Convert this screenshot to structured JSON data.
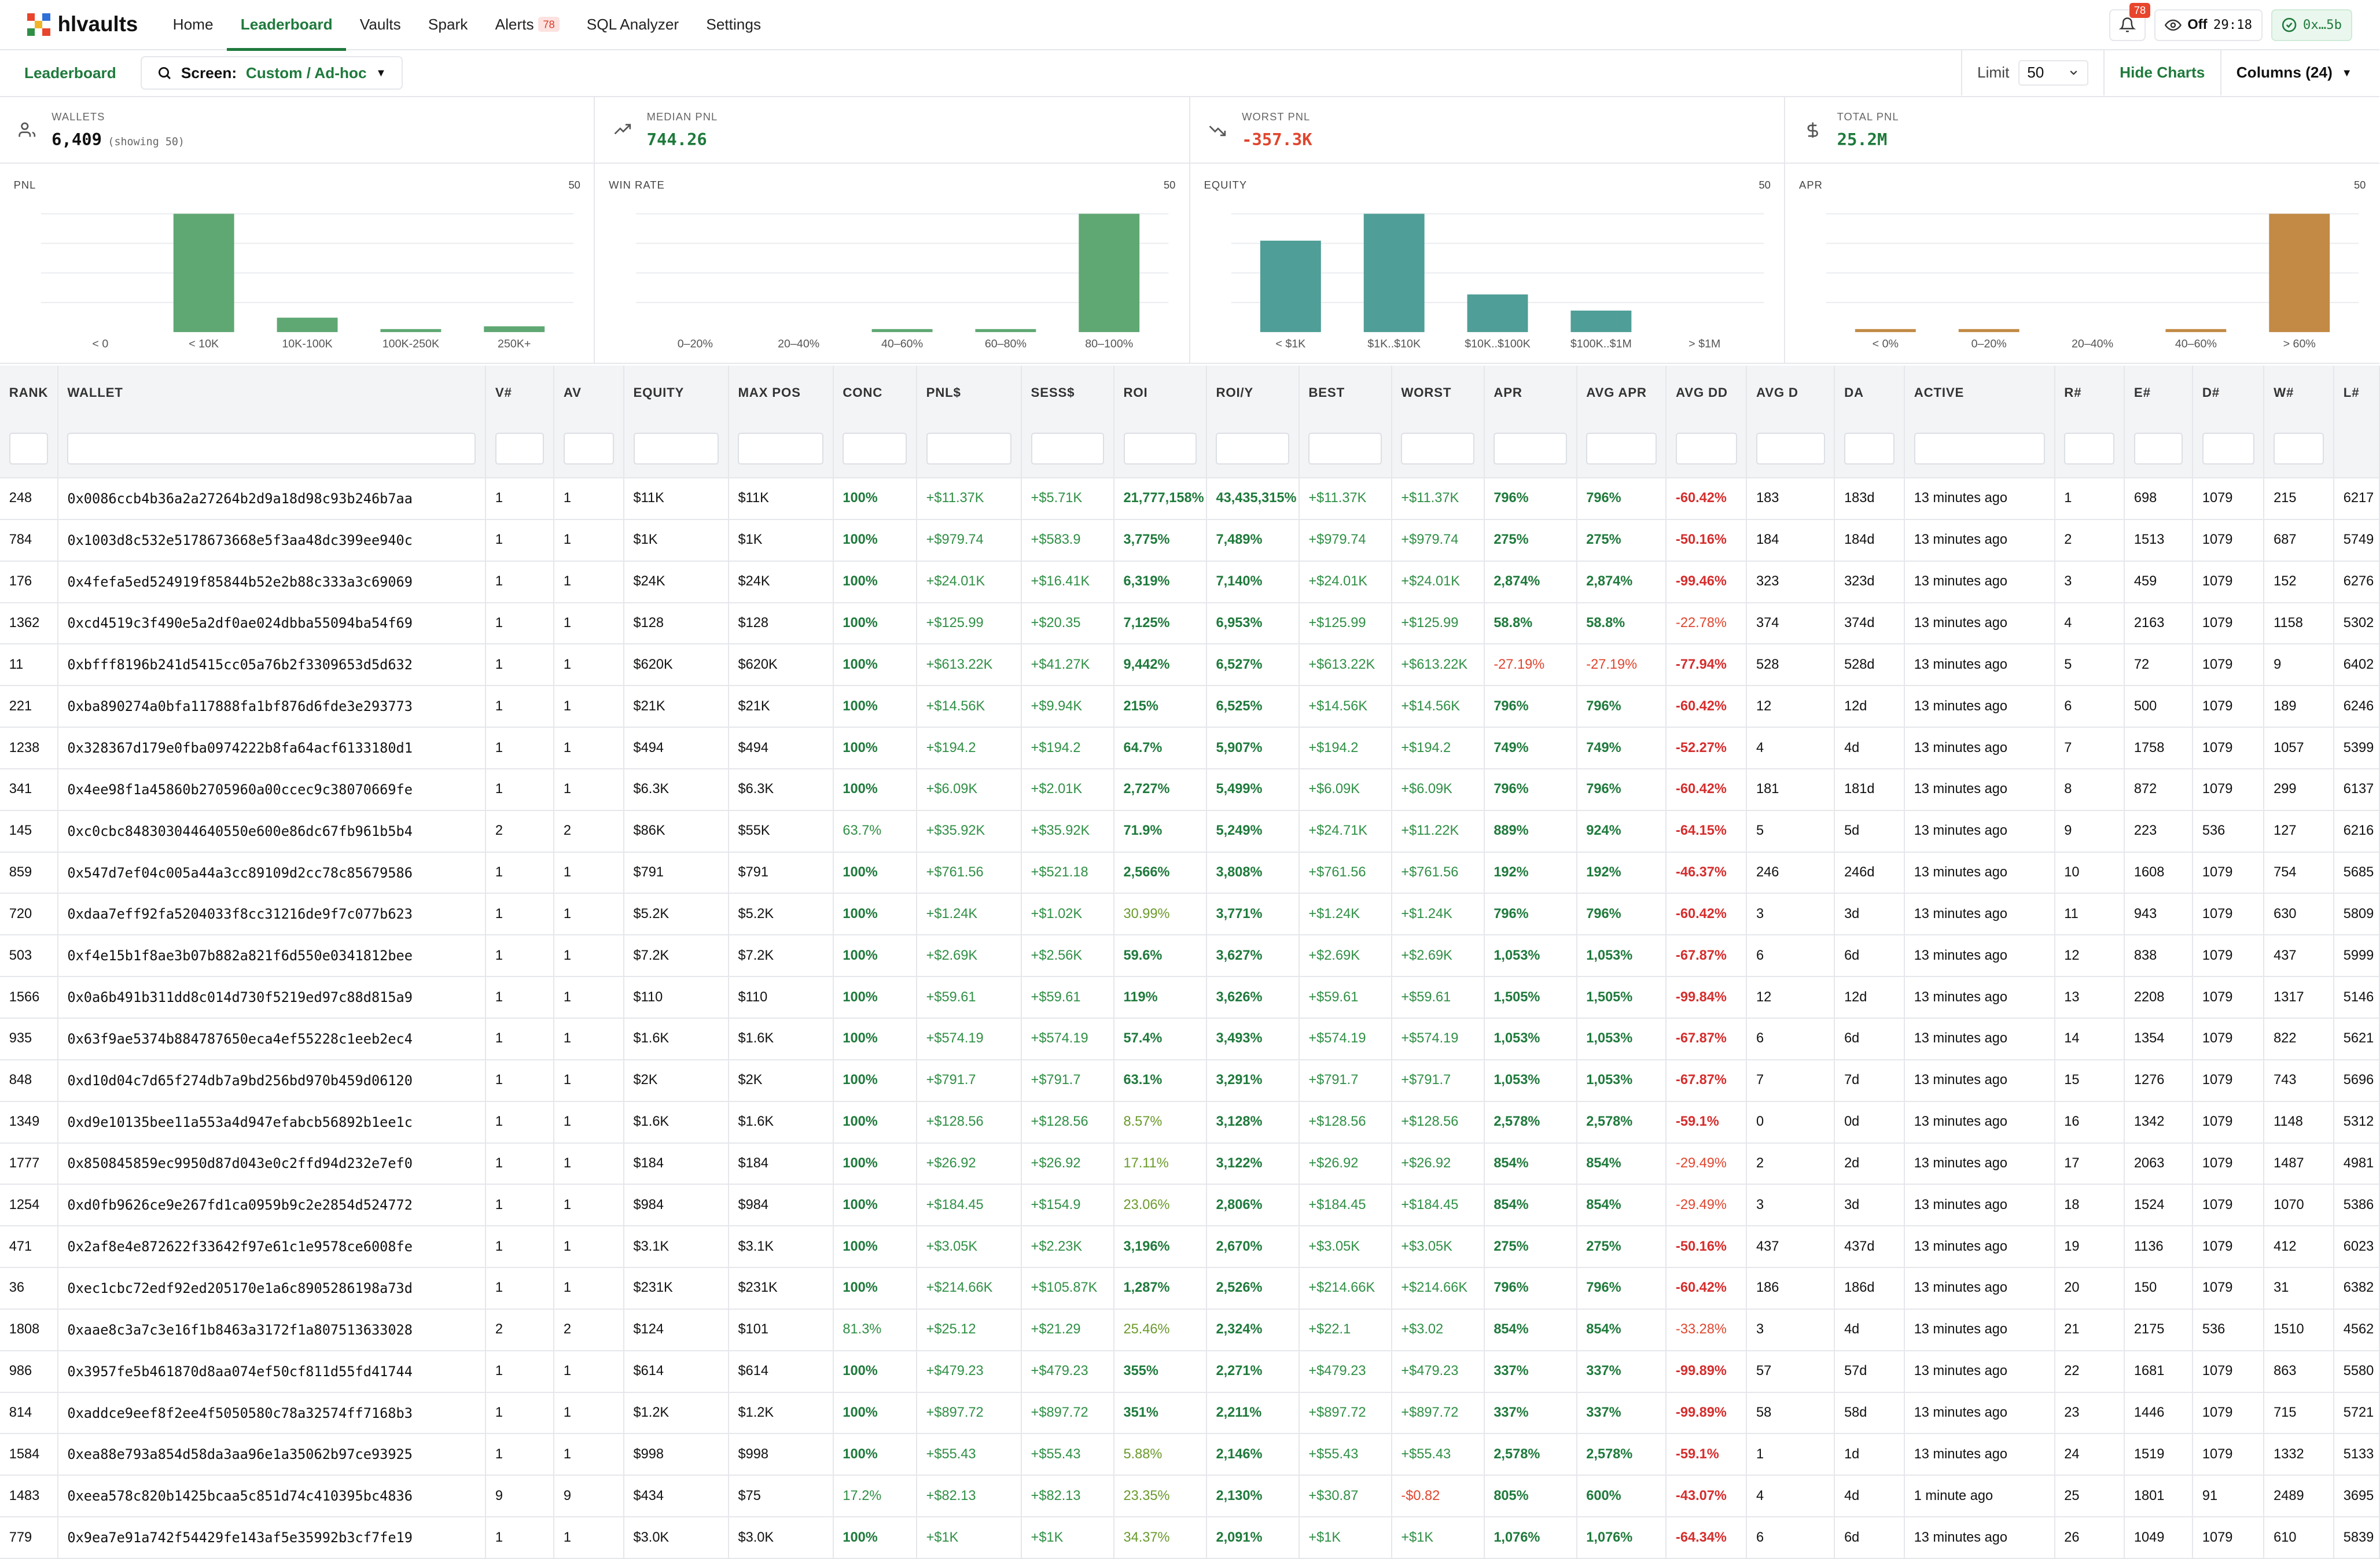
{
  "app": {
    "logo_text": "hlvaults",
    "nav": [
      {
        "label": "Home",
        "active": false
      },
      {
        "label": "Leaderboard",
        "active": true
      },
      {
        "label": "Vaults",
        "active": false
      },
      {
        "label": "Spark",
        "active": false
      },
      {
        "label": "Alerts",
        "active": false,
        "badge": "78"
      },
      {
        "label": "SQL Analyzer",
        "active": false
      },
      {
        "label": "Settings",
        "active": false
      }
    ],
    "notifications_count": "78",
    "watch_label": "Off",
    "watch_timer": "29:18",
    "wallet_short": "0x…5b"
  },
  "subbar": {
    "page_label": "Leaderboard",
    "screen_label": "Screen:",
    "screen_value": "Custom / Ad-hoc",
    "limit_label": "Limit",
    "limit_value": "50",
    "hide_charts": "Hide Charts",
    "columns_label": "Columns (24)"
  },
  "stats": [
    {
      "label": "WALLETS",
      "value": "6,409",
      "note": "(showing 50)",
      "icon": "users-icon",
      "color": "#111111"
    },
    {
      "label": "MEDIAN PNL",
      "value": "744.26",
      "note": "",
      "icon": "trend-up-icon",
      "color": "#1f7a3c"
    },
    {
      "label": "WORST PNL",
      "value": "-357.3K",
      "note": "",
      "icon": "trend-down-icon",
      "color": "#e0452e"
    },
    {
      "label": "TOTAL PNL",
      "value": "25.2M",
      "note": "",
      "icon": "dollar-icon",
      "color": "#1f7a3c"
    }
  ],
  "chart_data": [
    {
      "type": "bar",
      "title": "PNL",
      "count": "50",
      "categories": [
        "< 0",
        "< 10K",
        "10K-100K",
        "100K-250K",
        "250K+"
      ],
      "values": [
        0,
        41,
        5,
        1,
        2
      ],
      "color": "#5fa873"
    },
    {
      "type": "bar",
      "title": "WIN RATE",
      "count": "50",
      "categories": [
        "0–20%",
        "20–40%",
        "40–60%",
        "60–80%",
        "80–100%"
      ],
      "values": [
        0,
        0,
        1,
        1,
        48
      ],
      "color": "#5fa873"
    },
    {
      "type": "bar",
      "title": "EQUITY",
      "count": "50",
      "categories": [
        "< $1K",
        "$1K..$10K",
        "$10K..$100K",
        "$100K..$1M",
        "> $1M"
      ],
      "values": [
        17,
        22,
        7,
        4,
        0
      ],
      "color": "#4f9e97"
    },
    {
      "type": "bar",
      "title": "APR",
      "count": "50",
      "categories": [
        "< 0%",
        "0–20%",
        "20–40%",
        "40–60%",
        "> 60%"
      ],
      "values": [
        1,
        1,
        0,
        1,
        47
      ],
      "color": "#c28a45"
    }
  ],
  "table": {
    "columns": [
      "RANK",
      "WALLET",
      "V#",
      "AV",
      "EQUITY",
      "MAX POS",
      "CONC",
      "PNL$",
      "SESS$",
      "ROI",
      "ROI/Y",
      "BEST",
      "WORST",
      "APR",
      "AVG APR",
      "AVG DD",
      "AVG D",
      "DA",
      "ACTIVE",
      "R#",
      "E#",
      "D#",
      "W#",
      "L#"
    ],
    "rows": [
      [
        "248",
        "0x0086ccb4b36a2a27264b2d9a18d98c93b246b7aa",
        "1",
        "1",
        "$11K",
        "$11K",
        "100%",
        "+$11.37K",
        "+$5.71K",
        "21,777,158%",
        "43,435,315%",
        "+$11.37K",
        "+$11.37K",
        "796%",
        "796%",
        "-60.42%",
        "183",
        "183d",
        "13 minutes ago",
        "1",
        "698",
        "1079",
        "215",
        "6217"
      ],
      [
        "784",
        "0x1003d8c532e5178673668e5f3aa48dc399ee940c",
        "1",
        "1",
        "$1K",
        "$1K",
        "100%",
        "+$979.74",
        "+$583.9",
        "3,775%",
        "7,489%",
        "+$979.74",
        "+$979.74",
        "275%",
        "275%",
        "-50.16%",
        "184",
        "184d",
        "13 minutes ago",
        "2",
        "1513",
        "1079",
        "687",
        "5749"
      ],
      [
        "176",
        "0x4fefa5ed524919f85844b52e2b88c333a3c69069",
        "1",
        "1",
        "$24K",
        "$24K",
        "100%",
        "+$24.01K",
        "+$16.41K",
        "6,319%",
        "7,140%",
        "+$24.01K",
        "+$24.01K",
        "2,874%",
        "2,874%",
        "-99.46%",
        "323",
        "323d",
        "13 minutes ago",
        "3",
        "459",
        "1079",
        "152",
        "6276"
      ],
      [
        "1362",
        "0xcd4519c3f490e5a2df0ae024dbba55094ba54f69",
        "1",
        "1",
        "$128",
        "$128",
        "100%",
        "+$125.99",
        "+$20.35",
        "7,125%",
        "6,953%",
        "+$125.99",
        "+$125.99",
        "58.8%",
        "58.8%",
        "-22.78%",
        "374",
        "374d",
        "13 minutes ago",
        "4",
        "2163",
        "1079",
        "1158",
        "5302"
      ],
      [
        "11",
        "0xbfff8196b241d5415cc05a76b2f3309653d5d632",
        "1",
        "1",
        "$620K",
        "$620K",
        "100%",
        "+$613.22K",
        "+$41.27K",
        "9,442%",
        "6,527%",
        "+$613.22K",
        "+$613.22K",
        "-27.19%",
        "-27.19%",
        "-77.94%",
        "528",
        "528d",
        "13 minutes ago",
        "5",
        "72",
        "1079",
        "9",
        "6402"
      ],
      [
        "221",
        "0xba890274a0bfa117888fa1bf876d6fde3e293773",
        "1",
        "1",
        "$21K",
        "$21K",
        "100%",
        "+$14.56K",
        "+$9.94K",
        "215%",
        "6,525%",
        "+$14.56K",
        "+$14.56K",
        "796%",
        "796%",
        "-60.42%",
        "12",
        "12d",
        "13 minutes ago",
        "6",
        "500",
        "1079",
        "189",
        "6246"
      ],
      [
        "1238",
        "0x328367d179e0fba0974222b8fa64acf6133180d1",
        "1",
        "1",
        "$494",
        "$494",
        "100%",
        "+$194.2",
        "+$194.2",
        "64.7%",
        "5,907%",
        "+$194.2",
        "+$194.2",
        "749%",
        "749%",
        "-52.27%",
        "4",
        "4d",
        "13 minutes ago",
        "7",
        "1758",
        "1079",
        "1057",
        "5399"
      ],
      [
        "341",
        "0x4ee98f1a45860b2705960a00ccec9c38070669fe",
        "1",
        "1",
        "$6.3K",
        "$6.3K",
        "100%",
        "+$6.09K",
        "+$2.01K",
        "2,727%",
        "5,499%",
        "+$6.09K",
        "+$6.09K",
        "796%",
        "796%",
        "-60.42%",
        "181",
        "181d",
        "13 minutes ago",
        "8",
        "872",
        "1079",
        "299",
        "6137"
      ],
      [
        "145",
        "0xc0cbc848303044640550e600e86dc67fb961b5b4",
        "2",
        "2",
        "$86K",
        "$55K",
        "63.7%",
        "+$35.92K",
        "+$35.92K",
        "71.9%",
        "5,249%",
        "+$24.71K",
        "+$11.22K",
        "889%",
        "924%",
        "-64.15%",
        "5",
        "5d",
        "13 minutes ago",
        "9",
        "223",
        "536",
        "127",
        "6216"
      ],
      [
        "859",
        "0x547d7ef04c005a44a3cc89109d2cc78c85679586",
        "1",
        "1",
        "$791",
        "$791",
        "100%",
        "+$761.56",
        "+$521.18",
        "2,566%",
        "3,808%",
        "+$761.56",
        "+$761.56",
        "192%",
        "192%",
        "-46.37%",
        "246",
        "246d",
        "13 minutes ago",
        "10",
        "1608",
        "1079",
        "754",
        "5685"
      ],
      [
        "720",
        "0xdaa7eff92fa5204033f8cc31216de9f7c077b623",
        "1",
        "1",
        "$5.2K",
        "$5.2K",
        "100%",
        "+$1.24K",
        "+$1.02K",
        "30.99%",
        "3,771%",
        "+$1.24K",
        "+$1.24K",
        "796%",
        "796%",
        "-60.42%",
        "3",
        "3d",
        "13 minutes ago",
        "11",
        "943",
        "1079",
        "630",
        "5809"
      ],
      [
        "503",
        "0xf4e15b1f8ae3b07b882a821f6d550e0341812bee",
        "1",
        "1",
        "$7.2K",
        "$7.2K",
        "100%",
        "+$2.69K",
        "+$2.56K",
        "59.6%",
        "3,627%",
        "+$2.69K",
        "+$2.69K",
        "1,053%",
        "1,053%",
        "-67.87%",
        "6",
        "6d",
        "13 minutes ago",
        "12",
        "838",
        "1079",
        "437",
        "5999"
      ],
      [
        "1566",
        "0x0a6b491b311dd8c014d730f5219ed97c88d815a9",
        "1",
        "1",
        "$110",
        "$110",
        "100%",
        "+$59.61",
        "+$59.61",
        "119%",
        "3,626%",
        "+$59.61",
        "+$59.61",
        "1,505%",
        "1,505%",
        "-99.84%",
        "12",
        "12d",
        "13 minutes ago",
        "13",
        "2208",
        "1079",
        "1317",
        "5146"
      ],
      [
        "935",
        "0x63f9ae5374b884787650eca4ef55228c1eeb2ec4",
        "1",
        "1",
        "$1.6K",
        "$1.6K",
        "100%",
        "+$574.19",
        "+$574.19",
        "57.4%",
        "3,493%",
        "+$574.19",
        "+$574.19",
        "1,053%",
        "1,053%",
        "-67.87%",
        "6",
        "6d",
        "13 minutes ago",
        "14",
        "1354",
        "1079",
        "822",
        "5621"
      ],
      [
        "848",
        "0xd10d04c7d65f274db7a9bd256bd970b459d06120",
        "1",
        "1",
        "$2K",
        "$2K",
        "100%",
        "+$791.7",
        "+$791.7",
        "63.1%",
        "3,291%",
        "+$791.7",
        "+$791.7",
        "1,053%",
        "1,053%",
        "-67.87%",
        "7",
        "7d",
        "13 minutes ago",
        "15",
        "1276",
        "1079",
        "743",
        "5696"
      ],
      [
        "1349",
        "0xd9e10135bee11a553a4d947efabcb56892b1ee1c",
        "1",
        "1",
        "$1.6K",
        "$1.6K",
        "100%",
        "+$128.56",
        "+$128.56",
        "8.57%",
        "3,128%",
        "+$128.56",
        "+$128.56",
        "2,578%",
        "2,578%",
        "-59.1%",
        "0",
        "0d",
        "13 minutes ago",
        "16",
        "1342",
        "1079",
        "1148",
        "5312"
      ],
      [
        "1777",
        "0x850845859ec9950d87d043e0c2ffd94d232e7ef0",
        "1",
        "1",
        "$184",
        "$184",
        "100%",
        "+$26.92",
        "+$26.92",
        "17.11%",
        "3,122%",
        "+$26.92",
        "+$26.92",
        "854%",
        "854%",
        "-29.49%",
        "2",
        "2d",
        "13 minutes ago",
        "17",
        "2063",
        "1079",
        "1487",
        "4981"
      ],
      [
        "1254",
        "0xd0fb9626ce9e267fd1ca0959b9c2e2854d524772",
        "1",
        "1",
        "$984",
        "$984",
        "100%",
        "+$184.45",
        "+$154.9",
        "23.06%",
        "2,806%",
        "+$184.45",
        "+$184.45",
        "854%",
        "854%",
        "-29.49%",
        "3",
        "3d",
        "13 minutes ago",
        "18",
        "1524",
        "1079",
        "1070",
        "5386"
      ],
      [
        "471",
        "0x2af8e4e872622f33642f97e61c1e9578ce6008fe",
        "1",
        "1",
        "$3.1K",
        "$3.1K",
        "100%",
        "+$3.05K",
        "+$2.23K",
        "3,196%",
        "2,670%",
        "+$3.05K",
        "+$3.05K",
        "275%",
        "275%",
        "-50.16%",
        "437",
        "437d",
        "13 minutes ago",
        "19",
        "1136",
        "1079",
        "412",
        "6023"
      ],
      [
        "36",
        "0xec1cbc72edf92ed205170e1a6c8905286198a73d",
        "1",
        "1",
        "$231K",
        "$231K",
        "100%",
        "+$214.66K",
        "+$105.87K",
        "1,287%",
        "2,526%",
        "+$214.66K",
        "+$214.66K",
        "796%",
        "796%",
        "-60.42%",
        "186",
        "186d",
        "13 minutes ago",
        "20",
        "150",
        "1079",
        "31",
        "6382"
      ],
      [
        "1808",
        "0xaae8c3a7c3e16f1b8463a3172f1a807513633028",
        "2",
        "2",
        "$124",
        "$101",
        "81.3%",
        "+$25.12",
        "+$21.29",
        "25.46%",
        "2,324%",
        "+$22.1",
        "+$3.02",
        "854%",
        "854%",
        "-33.28%",
        "3",
        "4d",
        "13 minutes ago",
        "21",
        "2175",
        "536",
        "1510",
        "4562"
      ],
      [
        "986",
        "0x3957fe5b461870d8aa074ef50cf811d55fd41744",
        "1",
        "1",
        "$614",
        "$614",
        "100%",
        "+$479.23",
        "+$479.23",
        "355%",
        "2,271%",
        "+$479.23",
        "+$479.23",
        "337%",
        "337%",
        "-99.89%",
        "57",
        "57d",
        "13 minutes ago",
        "22",
        "1681",
        "1079",
        "863",
        "5580"
      ],
      [
        "814",
        "0xaddce9eef8f2ee4f5050580c78a32574ff7168b3",
        "1",
        "1",
        "$1.2K",
        "$1.2K",
        "100%",
        "+$897.72",
        "+$897.72",
        "351%",
        "2,211%",
        "+$897.72",
        "+$897.72",
        "337%",
        "337%",
        "-99.89%",
        "58",
        "58d",
        "13 minutes ago",
        "23",
        "1446",
        "1079",
        "715",
        "5721"
      ],
      [
        "1584",
        "0xea88e793a854d58da3aa96e1a35062b97ce93925",
        "1",
        "1",
        "$998",
        "$998",
        "100%",
        "+$55.43",
        "+$55.43",
        "5.88%",
        "2,146%",
        "+$55.43",
        "+$55.43",
        "2,578%",
        "2,578%",
        "-59.1%",
        "1",
        "1d",
        "13 minutes ago",
        "24",
        "1519",
        "1079",
        "1332",
        "5133"
      ],
      [
        "1483",
        "0xeea578c820b1425bcaa5c851d74c410395bc4836",
        "9",
        "9",
        "$434",
        "$75",
        "17.2%",
        "+$82.13",
        "+$82.13",
        "23.35%",
        "2,130%",
        "+$30.87",
        "-$0.82",
        "805%",
        "600%",
        "-43.07%",
        "4",
        "4d",
        "1 minute ago",
        "25",
        "1801",
        "91",
        "2489",
        "3695"
      ],
      [
        "779",
        "0x9ea7e91a742f54429fe143af5e35992b3cf7fe19",
        "1",
        "1",
        "$3.0K",
        "$3.0K",
        "100%",
        "+$1K",
        "+$1K",
        "34.37%",
        "2,091%",
        "+$1K",
        "+$1K",
        "1,076%",
        "1,076%",
        "-64.34%",
        "6",
        "6d",
        "13 minutes ago",
        "26",
        "1049",
        "1079",
        "610",
        "5839"
      ]
    ]
  }
}
